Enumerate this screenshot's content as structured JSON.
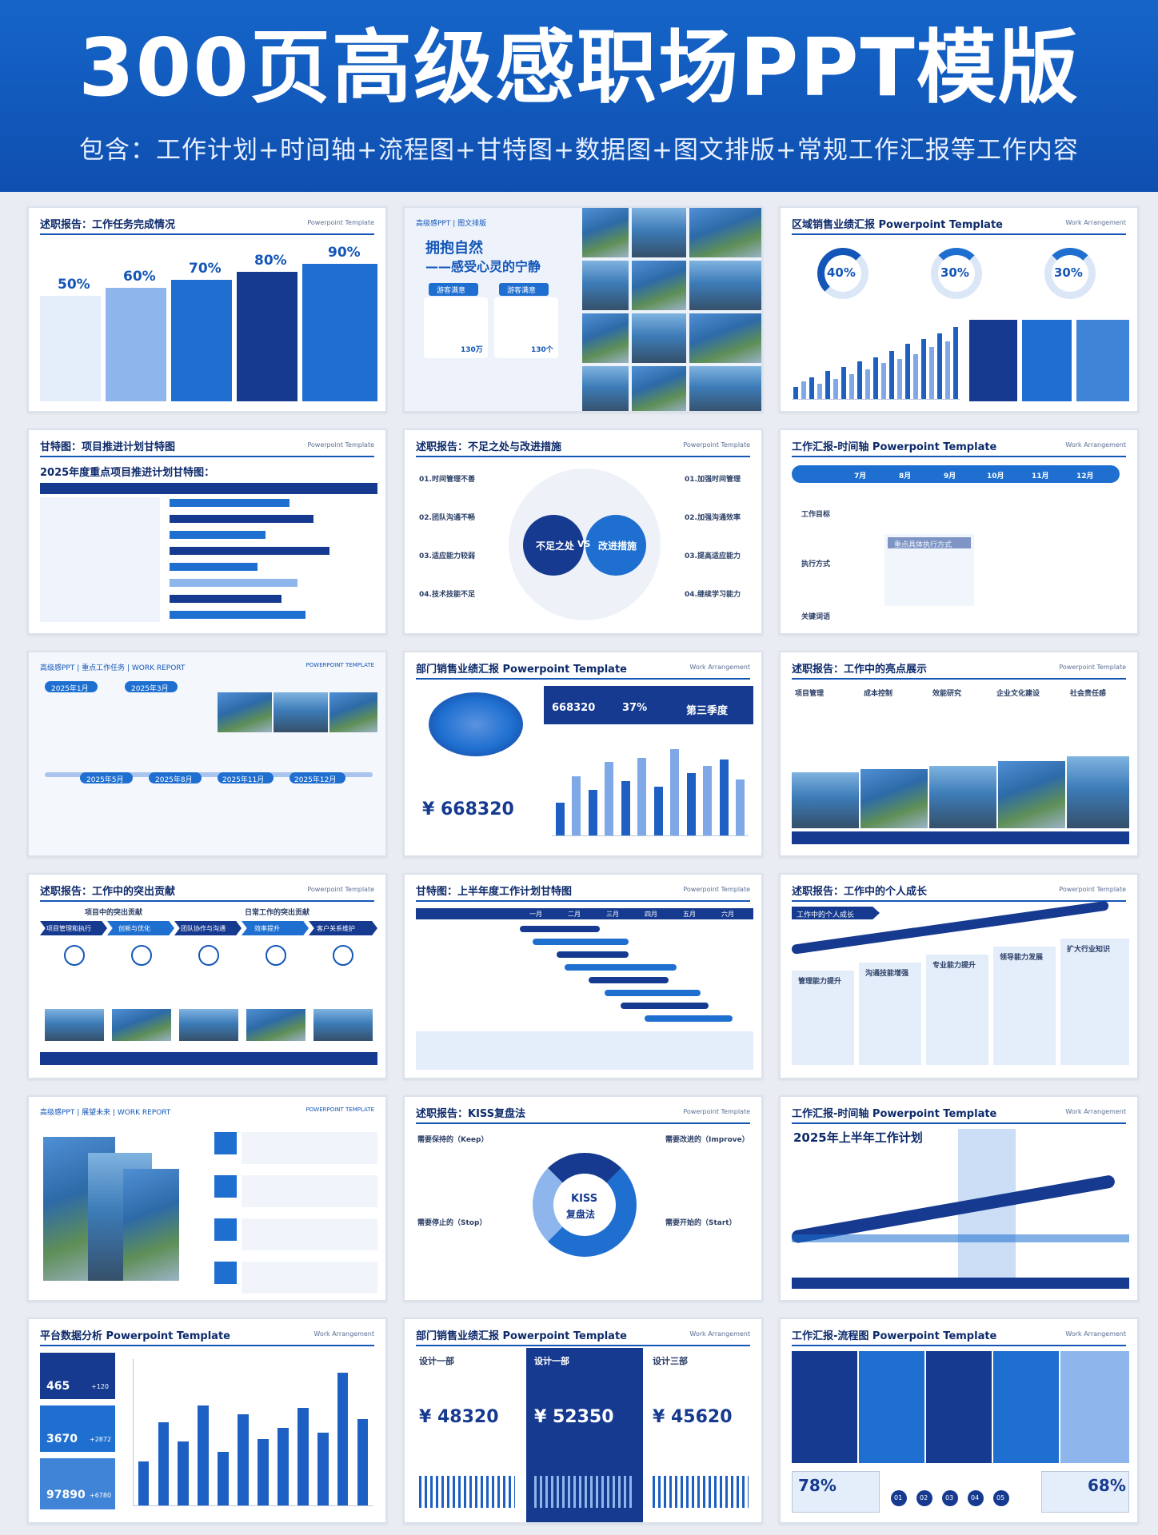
{
  "banner": {
    "title": "300页高级感职场PPT模版",
    "subtitle": "包含：工作计划+时间轴+流程图+甘特图+数据图+图文排版+常规工作汇报等工作内容"
  },
  "slides": [
    {
      "title": "述职报告：工作任务完成情况",
      "tag": "Powerpoint Template",
      "percents": [
        "50%",
        "60%",
        "70%",
        "80%",
        "90%"
      ]
    },
    {
      "title": "高级感PPT | 图文排版",
      "heading1": "拥抱自然",
      "heading2": "——感受心灵的宁静",
      "btn1": "游客满意",
      "btn2": "游客满意",
      "stat1": "130万",
      "stat2": "130个"
    },
    {
      "title": "区域销售业绩汇报 Powerpoint Template",
      "tag": "Work Arrangement",
      "rings": [
        "40%",
        "30%",
        "30%"
      ]
    },
    {
      "title": "甘特图：项目推进计划甘特图",
      "tag": "Powerpoint Template",
      "heading": "2025年度重点项目推进计划甘特图："
    },
    {
      "title": "述职报告：不足之处与改进措施",
      "tag": "Powerpoint Template",
      "left": "不足之处",
      "vs": "VS",
      "right": "改进措施",
      "items_left": [
        "01.时间管理不善",
        "02.团队沟通不畅",
        "03.适应能力较弱",
        "04.技术技能不足"
      ],
      "items_right": [
        "01.加强时间管理",
        "02.加强沟通效率",
        "03.提高适应能力",
        "04.继续学习能力"
      ]
    },
    {
      "title": "工作汇报-时间轴 Powerpoint Template",
      "tag": "Work Arrangement",
      "months": [
        "7月",
        "8月",
        "9月",
        "10月",
        "11月",
        "12月"
      ],
      "row1": "工作目标",
      "row2": "执行方式",
      "row3": "关键词语",
      "highlight": "重点具体执行方式"
    },
    {
      "title": "高级感PPT | 重点工作任务 | WORK REPORT",
      "tag": "POWERPOINT TEMPLATE",
      "dates": [
        "2025年1月",
        "2025年3月",
        "2025年5月",
        "2025年8月",
        "2025年11月",
        "2025年12月"
      ]
    },
    {
      "title": "部门销售业绩汇报 Powerpoint Template",
      "tag": "Work Arrangement",
      "kpi1": "668320",
      "kpi2": "37%",
      "kpi3": "第三季度",
      "total": "¥ 668320"
    },
    {
      "title": "述职报告：工作中的亮点展示",
      "tag": "Powerpoint Template",
      "items": [
        "项目管理",
        "成本控制",
        "效能研究",
        "企业文化建设",
        "社会责任感"
      ]
    },
    {
      "title": "述职报告：工作中的突出贡献",
      "tag": "Powerpoint Template",
      "sub1": "项目中的突出贡献",
      "sub2": "日常工作的突出贡献",
      "steps": [
        "项目管理和执行",
        "创新与优化",
        "团队协作与沟通",
        "效率提升",
        "客户关系维护"
      ]
    },
    {
      "title": "甘特图：上半年度工作计划甘特图",
      "tag": "Powerpoint Template",
      "months": [
        "一月",
        "二月",
        "三月",
        "四月",
        "五月",
        "六月"
      ]
    },
    {
      "title": "述职报告：工作中的个人成长",
      "tag": "Powerpoint Template",
      "label": "工作中的个人成长",
      "items": [
        "管理能力提升",
        "沟通技能增强",
        "专业能力提升",
        "领导能力发展",
        "扩大行业知识"
      ]
    },
    {
      "title": "高级感PPT | 展望未来 | WORK REPORT",
      "tag": "POWERPOINT TEMPLATE"
    },
    {
      "title": "述职报告：KISS复盘法",
      "tag": "Powerpoint Template",
      "center1": "KISS",
      "center2": "复盘法",
      "keep": "需要保持的（Keep）",
      "improve": "需要改进的（Improve）",
      "stop": "需要停止的（Stop）",
      "start": "需要开始的（Start）"
    },
    {
      "title": "工作汇报-时间轴 Powerpoint Template",
      "tag": "Work Arrangement",
      "heading": "2025年上半年工作计划"
    },
    {
      "title": "平台数据分析 Powerpoint Template",
      "tag": "Work Arrangement",
      "stats": [
        {
          "value": "465",
          "delta": "+120"
        },
        {
          "value": "3670",
          "delta": "+2872"
        },
        {
          "value": "97890",
          "delta": "+6780"
        }
      ]
    },
    {
      "title": "部门销售业绩汇报 Powerpoint Template",
      "tag": "Work Arrangement",
      "cols": [
        {
          "name": "设计一部",
          "value": "¥ 48320"
        },
        {
          "name": "设计一部",
          "value": "¥ 52350"
        },
        {
          "name": "设计三部",
          "value": "¥ 45620"
        }
      ]
    },
    {
      "title": "工作汇报-流程图 Powerpoint Template",
      "tag": "Work Arrangement",
      "left_pct": "78%",
      "right_pct": "68%",
      "steps": [
        "01",
        "02",
        "03",
        "04",
        "05"
      ]
    }
  ],
  "chart_data": [
    {
      "type": "bar",
      "title": "",
      "note": "slide 3 bars",
      "values": [
        12,
        18,
        22,
        15,
        28,
        20,
        32,
        25,
        38,
        30,
        42,
        36,
        48,
        40,
        55,
        45,
        60,
        52,
        66,
        58,
        72
      ]
    },
    {
      "type": "bar",
      "note": "slide 8 bars",
      "values": [
        30,
        55,
        42,
        68,
        50,
        72,
        45,
        80,
        58,
        64,
        70,
        52
      ]
    },
    {
      "type": "bar",
      "note": "slide 16 bars",
      "values": [
        40,
        75,
        58,
        90,
        48,
        82,
        60,
        70,
        88,
        66,
        120,
        78
      ]
    }
  ],
  "colors": {
    "brand": "#1565c9",
    "navy": "#163a8f",
    "light": "#8fb6ec"
  }
}
